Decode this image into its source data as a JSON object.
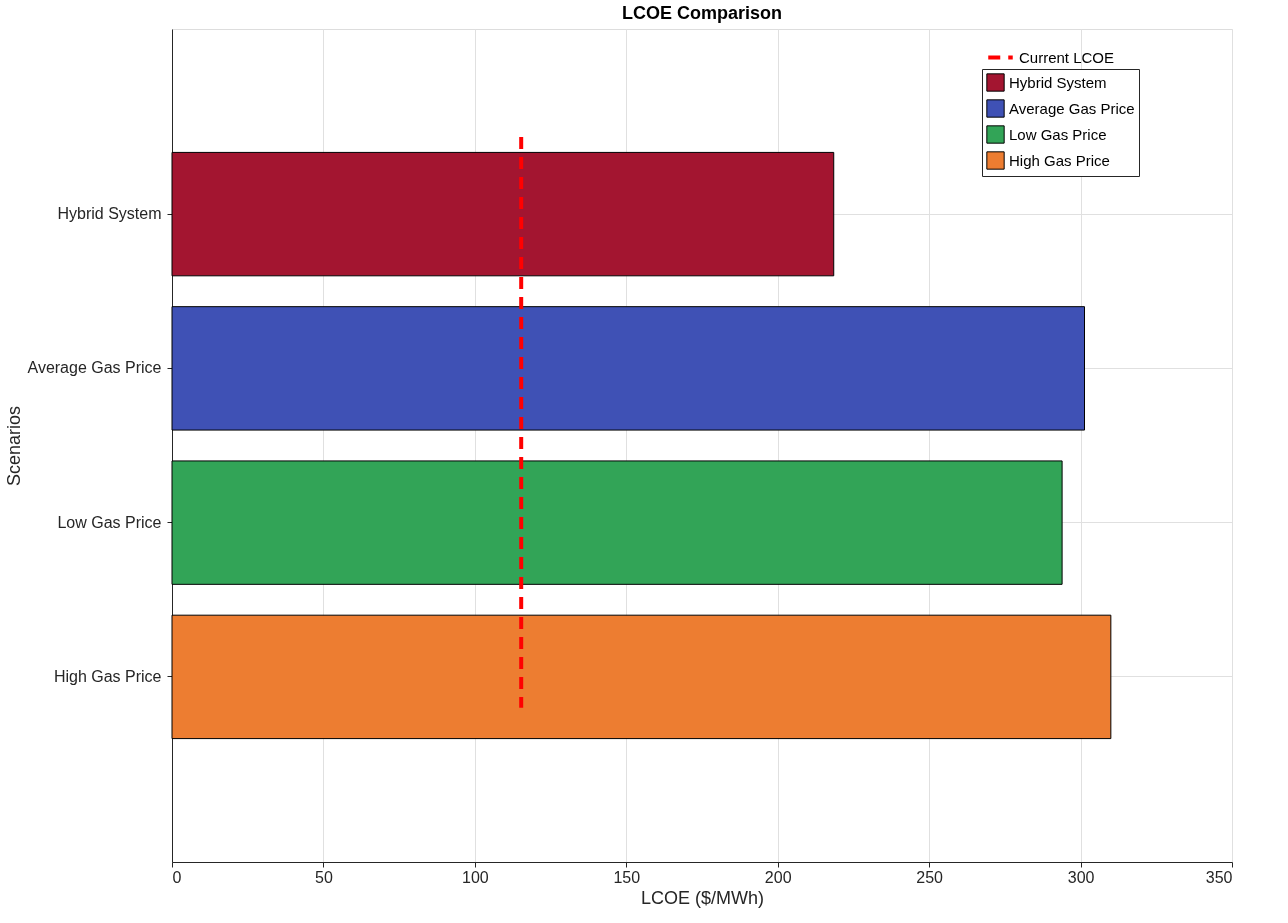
{
  "chart_data": {
    "type": "bar",
    "orientation": "horizontal",
    "title": "LCOE Comparison",
    "xlabel": "LCOE ($/MWh)",
    "ylabel": "Scenarios",
    "categories": [
      "Hybrid System",
      "Average Gas Price",
      "Low Gas Price",
      "High Gas Price"
    ],
    "series": [
      {
        "name": "Hybrid System",
        "color": "#a31530",
        "values": [
          218.5,
          null,
          null,
          null
        ]
      },
      {
        "name": "Average Gas Price",
        "color": "#3f51b5",
        "values": [
          null,
          301.3,
          null,
          null
        ]
      },
      {
        "name": "Low Gas Price",
        "color": "#32a457",
        "values": [
          null,
          null,
          293.9,
          null
        ]
      },
      {
        "name": "High Gas Price",
        "color": "#ed7d31",
        "values": [
          null,
          null,
          null,
          310.0
        ]
      }
    ],
    "xlim": [
      0,
      350
    ],
    "xticks": [
      0,
      50,
      100,
      150,
      200,
      250,
      300,
      350
    ],
    "ref_lines": [
      {
        "axis": "x",
        "value": 115.3,
        "label": "Current LCOE",
        "color": "#ff0000",
        "line_style": "dashed"
      }
    ],
    "grid": true,
    "legend": "top right"
  }
}
